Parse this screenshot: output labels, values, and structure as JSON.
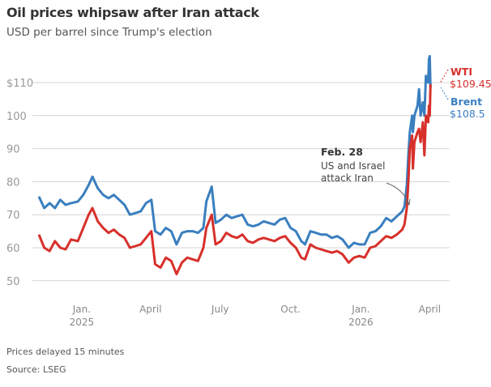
{
  "chart_data": {
    "type": "line",
    "title": "Oil prices whipsaw after Iran attack",
    "subtitle": "USD per barrel since Trump's election",
    "xlabel": "",
    "ylabel": "",
    "ylim": [
      42,
      125
    ],
    "xlim": [
      "2024-11-03",
      "2026-04-05"
    ],
    "grid": true,
    "y_ticks": [
      {
        "value": 110,
        "label": "$110"
      },
      {
        "value": 100,
        "label": "100"
      },
      {
        "value": 90,
        "label": "90"
      },
      {
        "value": 80,
        "label": "80"
      },
      {
        "value": 70,
        "label": "70"
      },
      {
        "value": 60,
        "label": "60"
      },
      {
        "value": 50,
        "label": "50"
      }
    ],
    "x_ticks": [
      {
        "date": "2025-01-01",
        "label": "Jan.",
        "year": "2025"
      },
      {
        "date": "2025-04-01",
        "label": "April",
        "year": ""
      },
      {
        "date": "2025-07-01",
        "label": "July",
        "year": ""
      },
      {
        "date": "2025-10-01",
        "label": "Oct.",
        "year": ""
      },
      {
        "date": "2026-01-01",
        "label": "Jan.",
        "year": "2026"
      },
      {
        "date": "2026-04-01",
        "label": "April",
        "year": ""
      }
    ],
    "x": [
      "2024-11-06",
      "2024-11-13",
      "2024-11-20",
      "2024-11-27",
      "2024-12-04",
      "2024-12-11",
      "2024-12-18",
      "2024-12-27",
      "2025-01-03",
      "2025-01-10",
      "2025-01-15",
      "2025-01-22",
      "2025-01-29",
      "2025-02-05",
      "2025-02-12",
      "2025-02-19",
      "2025-02-26",
      "2025-03-05",
      "2025-03-12",
      "2025-03-19",
      "2025-03-26",
      "2025-04-02",
      "2025-04-07",
      "2025-04-14",
      "2025-04-21",
      "2025-04-28",
      "2025-05-05",
      "2025-05-12",
      "2025-05-19",
      "2025-05-26",
      "2025-06-02",
      "2025-06-09",
      "2025-06-13",
      "2025-06-20",
      "2025-06-25",
      "2025-07-02",
      "2025-07-09",
      "2025-07-16",
      "2025-07-23",
      "2025-07-30",
      "2025-08-06",
      "2025-08-13",
      "2025-08-20",
      "2025-08-27",
      "2025-09-03",
      "2025-09-10",
      "2025-09-17",
      "2025-09-24",
      "2025-10-01",
      "2025-10-08",
      "2025-10-15",
      "2025-10-20",
      "2025-10-27",
      "2025-11-03",
      "2025-11-10",
      "2025-11-17",
      "2025-11-24",
      "2025-12-01",
      "2025-12-08",
      "2025-12-16",
      "2025-12-23",
      "2025-12-30",
      "2026-01-06",
      "2026-01-13",
      "2026-01-20",
      "2026-01-27",
      "2026-02-03",
      "2026-02-10",
      "2026-02-17",
      "2026-02-24",
      "2026-02-27",
      "2026-03-02",
      "2026-03-04",
      "2026-03-06",
      "2026-03-09",
      "2026-03-10",
      "2026-03-12",
      "2026-03-16",
      "2026-03-18",
      "2026-03-20",
      "2026-03-23",
      "2026-03-25",
      "2026-03-27",
      "2026-03-30",
      "2026-03-31",
      "2026-04-01",
      "2026-04-02"
    ],
    "series": [
      {
        "name": "Brent",
        "color": "#3a7fbf",
        "last_label": "$108.5",
        "values": [
          75.5,
          72,
          73.5,
          72,
          74.5,
          73,
          73.5,
          74,
          76,
          79,
          81.5,
          78,
          76,
          75,
          76,
          74.5,
          73,
          70,
          70.5,
          71,
          73.5,
          74.5,
          65,
          64,
          66,
          65,
          61,
          64.5,
          65,
          65,
          64.5,
          66,
          74,
          78.5,
          67.5,
          68.5,
          70,
          69,
          69.5,
          70,
          67,
          66.5,
          67,
          68,
          67.5,
          67,
          68.5,
          69,
          66,
          65,
          62,
          61,
          65,
          64.5,
          64,
          64,
          63,
          63.5,
          62.5,
          60,
          61.5,
          61,
          61,
          64.5,
          65,
          66.5,
          69,
          68,
          69.5,
          71,
          72.5,
          79,
          88,
          95,
          100,
          95,
          100,
          103,
          108,
          100,
          104,
          100,
          112,
          110,
          117,
          118,
          108.5
        ]
      },
      {
        "name": "WTI",
        "color": "#d7302b",
        "last_label": "$109.45",
        "values": [
          64,
          60,
          59,
          62,
          60,
          59.5,
          62.5,
          62,
          66,
          70,
          72,
          68,
          66,
          64.5,
          65.5,
          64,
          63,
          60,
          60.5,
          61,
          63,
          65,
          55,
          54,
          57,
          56,
          52,
          55.5,
          57,
          56.5,
          56,
          60,
          66,
          70,
          61,
          62,
          64.5,
          63.5,
          63,
          64,
          62,
          61.5,
          62.5,
          63,
          62.5,
          62,
          63,
          63.5,
          61.5,
          60,
          57,
          56.5,
          61,
          60,
          59.5,
          59,
          58.5,
          59,
          58,
          55.5,
          57,
          57.5,
          57,
          60,
          60.5,
          62,
          63.5,
          63,
          64,
          65.5,
          67,
          72,
          80,
          90,
          94,
          84,
          92,
          95,
          96,
          92,
          98,
          88,
          100,
          98,
          103,
          100,
          109.45
        ]
      }
    ],
    "annotation": {
      "date": "2026-02-27",
      "value": 72.5,
      "heading": "Feb. 28",
      "lines": [
        "US and Israel",
        "attack Iran"
      ]
    }
  },
  "footer": {
    "note": "Prices delayed 15 minutes",
    "source": "Source: LSEG"
  }
}
